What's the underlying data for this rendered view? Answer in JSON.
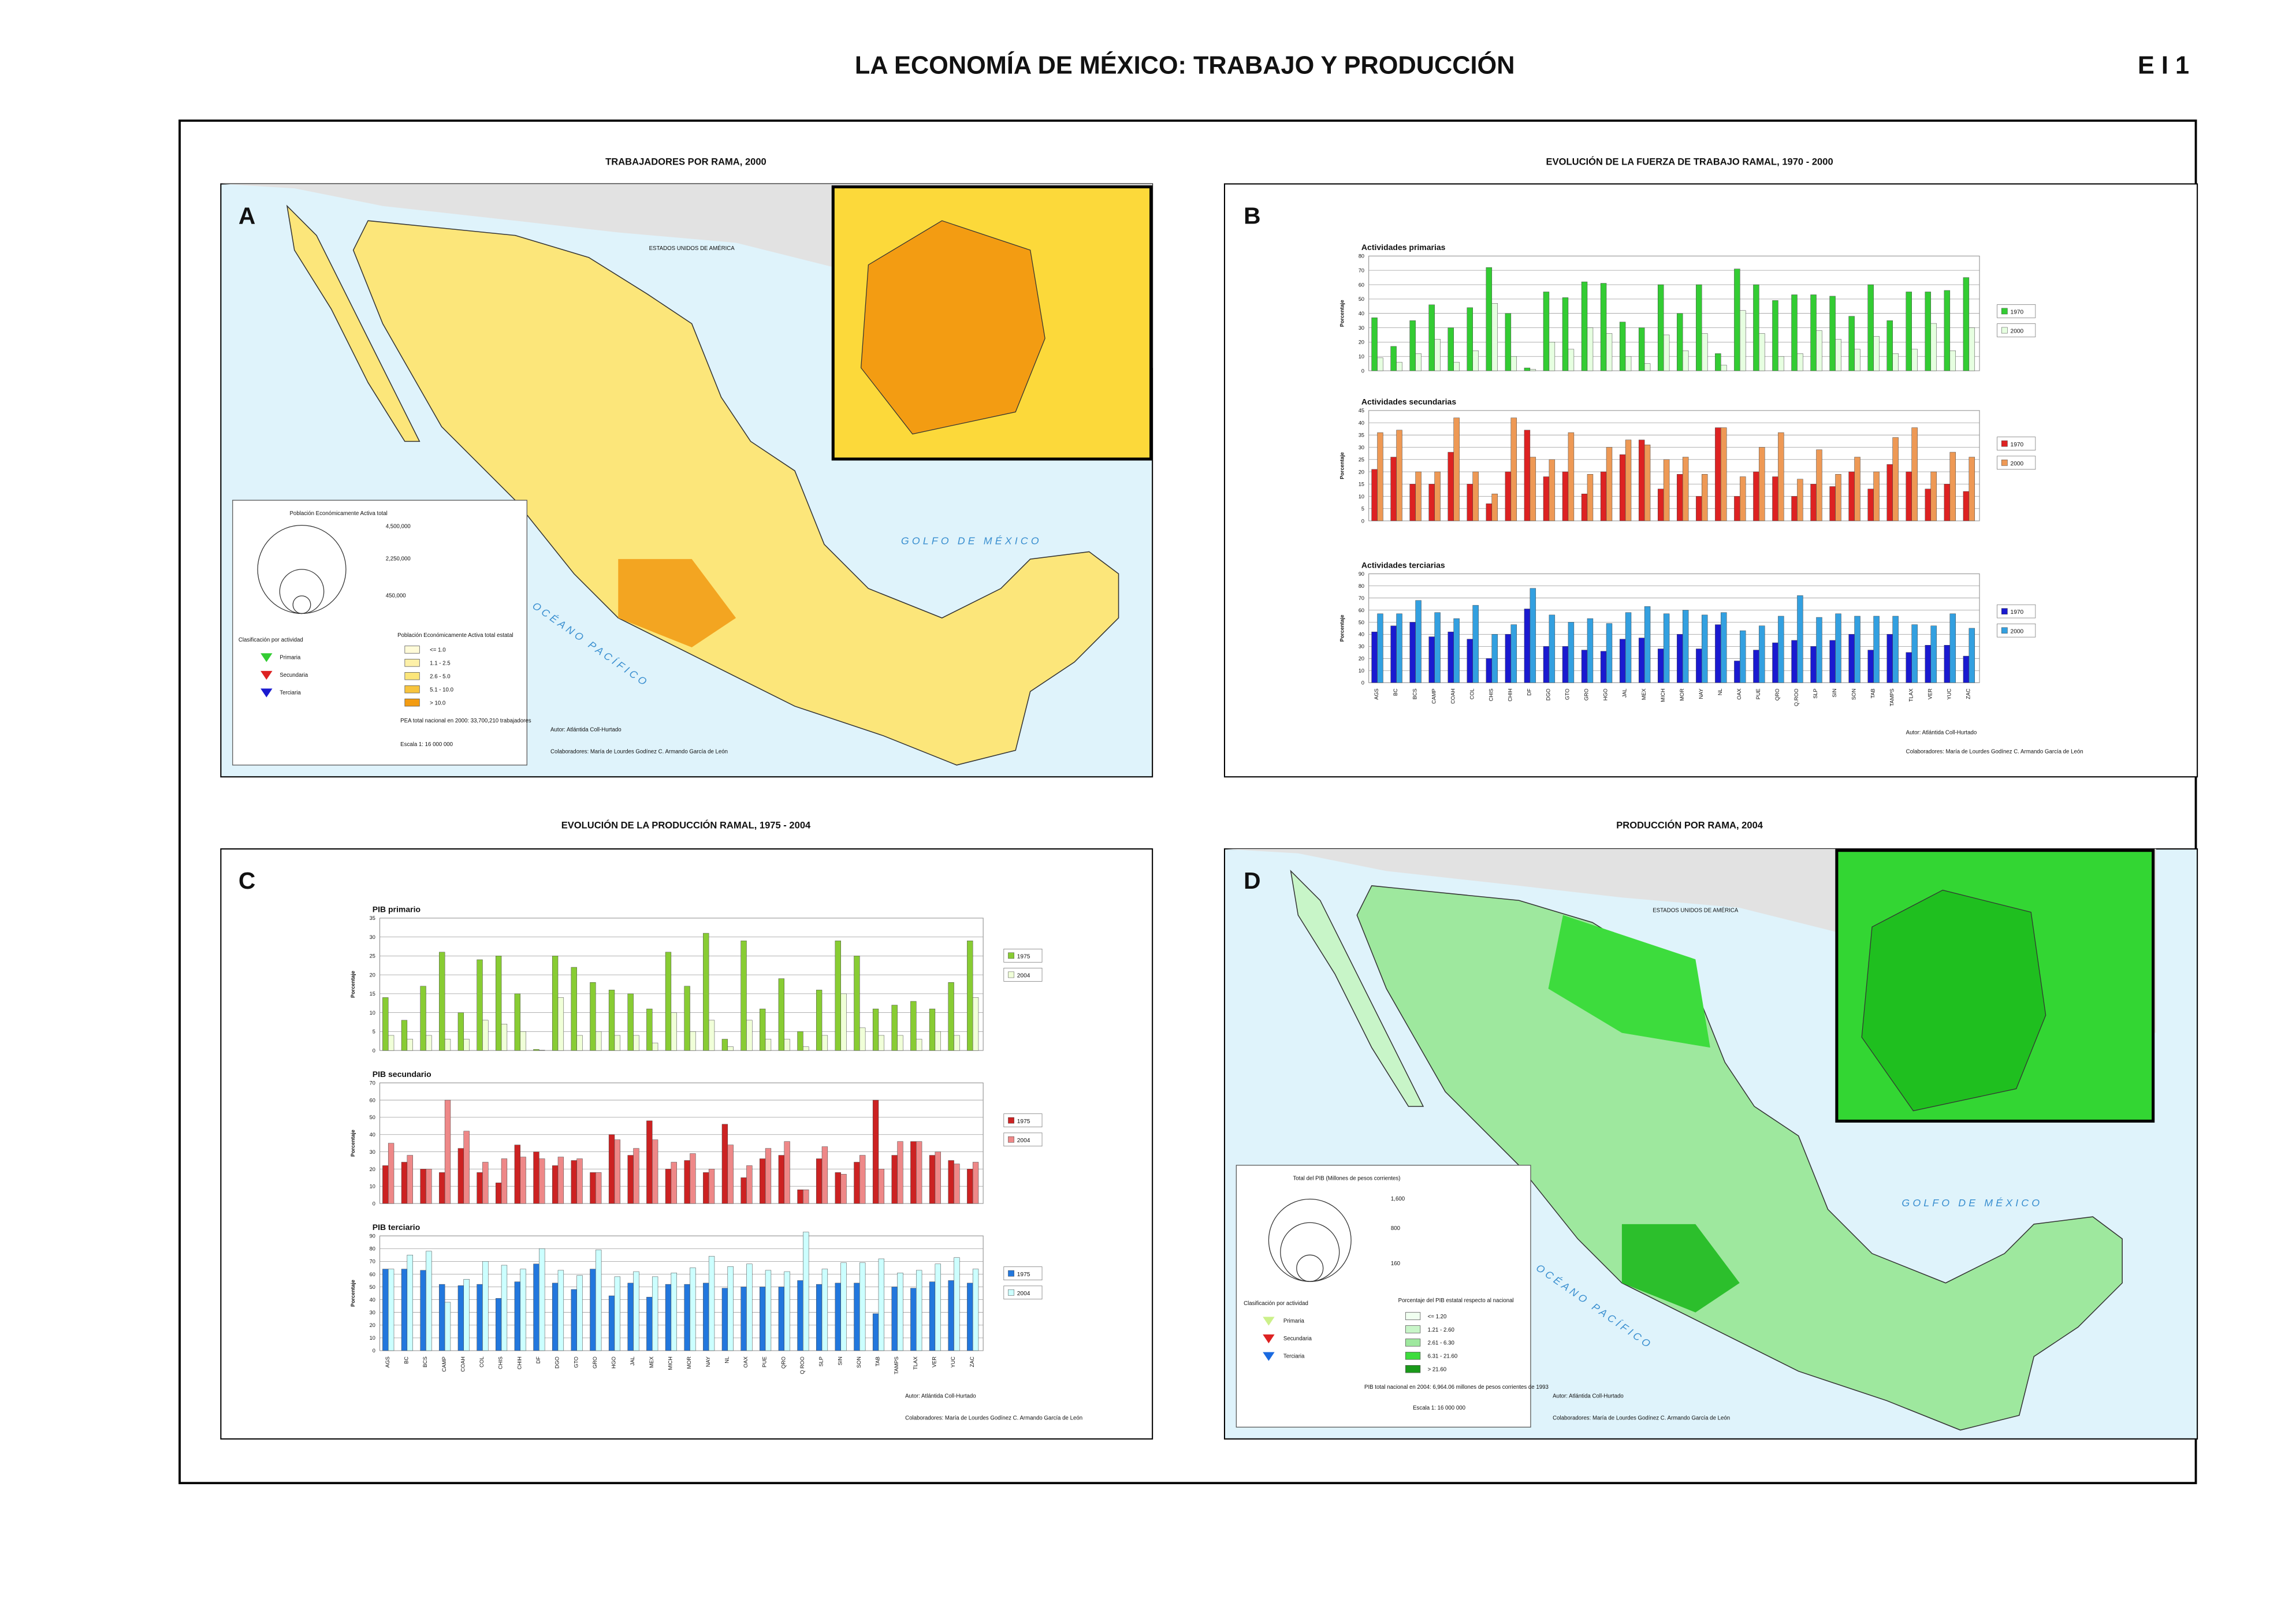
{
  "header": {
    "title": "LA ECONOMÍA DE MÉXICO: TRABAJO Y PRODUCCIÓN",
    "code": "E I 1"
  },
  "panel_a": {
    "letter": "A",
    "title": "TRABAJADORES POR RAMA, 2000",
    "country": "ESTADOS UNIDOS DE AMÉRICA",
    "gulf": "GOLFO DE MÉXICO",
    "ocean": "OCÉANO PACÍFICO",
    "size_legend_title": "Población Económicamente Activa total",
    "size_labels": [
      "4,500,000",
      "2,250,000",
      "450,000"
    ],
    "class_title": "Clasificación por actividad",
    "classes": [
      "Primaria",
      "Secundaria",
      "Terciaria"
    ],
    "choropleth_title": "Población Económicamente Activa total estatal",
    "choropleth_labels": [
      "<= 1.0",
      "1.1 -  2.5",
      "2.6 -  5.0",
      "5.1 - 10.0",
      "> 10.0"
    ],
    "total": "PEA total nacional en 2000: 33,700,210 trabajadores",
    "scale": "Escala  1: 16 000 000",
    "author": "Autor: Atlántida Coll-Hurtado",
    "collaborators": "Colaboradores: María de Lourdes Godínez C. Armando García de León"
  },
  "panel_b": {
    "letter": "B",
    "title": "EVOLUCIÓN DE LA FUERZA DE TRABAJO RAMAL, 1970 - 2000",
    "author": "Autor: Atlántida Coll-Hurtado",
    "collaborators": "Colaboradores: María de Lourdes Godínez C. Armando García de León"
  },
  "panel_c": {
    "letter": "C",
    "title": "EVOLUCIÓN DE LA PRODUCCIÓN RAMAL, 1975 - 2004",
    "author": "Autor: Atlántida Coll-Hurtado",
    "collaborators": "Colaboradores: María de Lourdes Godínez C. Armando García de León"
  },
  "panel_d": {
    "letter": "D",
    "title": "PRODUCCIÓN POR RAMA, 2004",
    "country": "ESTADOS UNIDOS DE AMÉRICA",
    "gulf": "GOLFO DE MÉXICO",
    "ocean": "OCÉANO PACÍFICO",
    "size_legend_title": "Total del PIB (Millones de pesos corrientes)",
    "size_labels": [
      "1,600",
      "800",
      "160"
    ],
    "class_title": "Clasificación por actividad",
    "classes": [
      "Primaria",
      "Secundaria",
      "Terciaria"
    ],
    "choropleth_title": "Porcentaje del PIB estatal respecto al nacional",
    "choropleth_labels": [
      "<= 1.20",
      "1.21 -  2.60",
      "2.61 -  6.30",
      "6.31 - 21.60",
      "> 21.60"
    ],
    "total": "PIB total nacional en 2004: 6,964.06 millones de pesos corrientes de 1993",
    "scale": "Escala  1: 16 000 000",
    "author": "Autor: Atlántida Coll-Hurtado",
    "collaborators": "Colaboradores: María de Lourdes Godínez C. Armando García de León"
  },
  "chart_data": [
    {
      "type": "bar",
      "title": "Actividades primarias",
      "y_label": "Porcentaje",
      "ylim": [
        0,
        80
      ],
      "yticks": [
        0,
        10,
        20,
        30,
        40,
        50,
        60,
        70,
        80
      ],
      "grid": true,
      "series": [
        {
          "name": "1970",
          "color": "#33cc33",
          "values": [
            37,
            17,
            35,
            46,
            30,
            44,
            72,
            40,
            2,
            55,
            51,
            62,
            61,
            34,
            30,
            60,
            40,
            60,
            12,
            71,
            60,
            49,
            53,
            53,
            52,
            38,
            60,
            35,
            55,
            55,
            56,
            65
          ]
        },
        {
          "name": "2000",
          "color": "#e6ffe0",
          "values": [
            9,
            6,
            12,
            22,
            6,
            14,
            47,
            10,
            1,
            20,
            15,
            30,
            26,
            10,
            5,
            25,
            14,
            26,
            4,
            42,
            26,
            10,
            12,
            28,
            22,
            15,
            24,
            12,
            15,
            33,
            14,
            30
          ]
        }
      ]
    },
    {
      "type": "bar",
      "title": "Actividades secundarias",
      "y_label": "Porcentaje",
      "ylim": [
        0,
        45
      ],
      "yticks": [
        0,
        5,
        10,
        15,
        20,
        25,
        30,
        35,
        40,
        45
      ],
      "grid": true,
      "series": [
        {
          "name": "1970",
          "color": "#dd2222",
          "values": [
            21,
            26,
            15,
            15,
            28,
            15,
            7,
            20,
            37,
            18,
            20,
            11,
            20,
            27,
            33,
            13,
            19,
            10,
            38,
            10,
            20,
            18,
            10,
            15,
            14,
            20,
            13,
            23,
            20,
            13,
            15,
            12
          ]
        },
        {
          "name": "2000",
          "color": "#ee9955",
          "values": [
            36,
            37,
            20,
            20,
            42,
            20,
            11,
            42,
            26,
            25,
            36,
            19,
            30,
            33,
            31,
            25,
            26,
            19,
            38,
            18,
            30,
            36,
            17,
            29,
            19,
            26,
            20,
            34,
            38,
            20,
            28,
            26
          ]
        }
      ]
    },
    {
      "type": "bar",
      "title": "Actividades terciarias",
      "y_label": "Porcentaje",
      "ylim": [
        0,
        90
      ],
      "yticks": [
        0,
        10,
        20,
        30,
        40,
        50,
        60,
        70,
        80,
        90
      ],
      "grid": true,
      "categories": [
        "AGS",
        "BC",
        "BCS",
        "CAMP",
        "COAH",
        "COL",
        "CHIS",
        "CHIH",
        "DF",
        "DGO",
        "GTO",
        "GRO",
        "HGO",
        "JAL",
        "MEX",
        "MICH",
        "MOR",
        "NAY",
        "NL",
        "OAX",
        "PUE",
        "QRO",
        "Q.ROO",
        "SLP",
        "SIN",
        "SON",
        "TAB",
        "TAMPS",
        "TLAX",
        "VER",
        "YUC",
        "ZAC"
      ],
      "series": [
        {
          "name": "1970",
          "color": "#1a1ad0",
          "values": [
            42,
            47,
            50,
            38,
            42,
            36,
            20,
            40,
            61,
            30,
            30,
            27,
            26,
            36,
            37,
            28,
            40,
            28,
            48,
            18,
            27,
            33,
            35,
            30,
            35,
            40,
            27,
            40,
            25,
            31,
            31,
            22
          ]
        },
        {
          "name": "2000",
          "color": "#33a0e0",
          "values": [
            57,
            57,
            68,
            58,
            53,
            64,
            40,
            48,
            78,
            56,
            50,
            53,
            49,
            58,
            63,
            57,
            60,
            56,
            58,
            43,
            47,
            55,
            72,
            54,
            57,
            55,
            55,
            55,
            48,
            47,
            57,
            45
          ]
        }
      ]
    },
    {
      "type": "bar",
      "title": "PIB primario",
      "y_label": "Porcentaje",
      "ylim": [
        0,
        35
      ],
      "yticks": [
        0,
        5,
        10,
        15,
        20,
        25,
        30,
        35
      ],
      "grid": true,
      "series": [
        {
          "name": "1975",
          "color": "#88cc33",
          "values": [
            14,
            8,
            17,
            26,
            10,
            24,
            25,
            15,
            0.3,
            25,
            22,
            18,
            16,
            15,
            11,
            26,
            17,
            31,
            3,
            29,
            11,
            19,
            5,
            16,
            29,
            25,
            11,
            12,
            13,
            11,
            18,
            29
          ]
        },
        {
          "name": "2004",
          "color": "#f0ffd8",
          "values": [
            4,
            3,
            4,
            3,
            3,
            8,
            7,
            5,
            0.1,
            14,
            4,
            5,
            4,
            4,
            2,
            10,
            5,
            8,
            1,
            8,
            3,
            3,
            1,
            4,
            15,
            6,
            4,
            4,
            3,
            5,
            4,
            14
          ]
        }
      ]
    },
    {
      "type": "bar",
      "title": "PIB secundario",
      "y_label": "Porcentaje",
      "ylim": [
        0,
        70
      ],
      "yticks": [
        0,
        10,
        20,
        30,
        40,
        50,
        60,
        70
      ],
      "grid": true,
      "series": [
        {
          "name": "1975",
          "color": "#cc2222",
          "values": [
            22,
            24,
            20,
            18,
            32,
            18,
            12,
            34,
            30,
            22,
            25,
            18,
            40,
            28,
            48,
            20,
            25,
            18,
            46,
            15,
            26,
            28,
            8,
            26,
            18,
            24,
            60,
            28,
            36,
            28,
            25,
            20
          ]
        },
        {
          "name": "2004",
          "color": "#ee8888",
          "values": [
            35,
            28,
            20,
            60,
            42,
            24,
            26,
            27,
            26,
            27,
            26,
            18,
            37,
            32,
            37,
            24,
            29,
            20,
            34,
            22,
            32,
            36,
            8,
            33,
            17,
            28,
            20,
            36,
            36,
            30,
            23,
            24
          ]
        }
      ]
    },
    {
      "type": "bar",
      "title": "PIB terciario",
      "y_label": "Porcentaje",
      "ylim": [
        0,
        90
      ],
      "yticks": [
        0,
        10,
        20,
        30,
        40,
        50,
        60,
        70,
        80,
        90
      ],
      "grid": true,
      "categories": [
        "AGS",
        "BC",
        "BCS",
        "CAMP",
        "COAH",
        "COL",
        "CHIS",
        "CHIH",
        "DF",
        "DGO",
        "GTO",
        "GRO",
        "HGO",
        "JAL",
        "MEX",
        "MICH",
        "MOR",
        "NAY",
        "NL",
        "OAX",
        "PUE",
        "QRO",
        "Q ROO",
        "SLP",
        "SIN",
        "SON",
        "TAB",
        "TAMPS",
        "TLAX",
        "VER",
        "YUC",
        "ZAC"
      ],
      "series": [
        {
          "name": "1975",
          "color": "#2277dd",
          "values": [
            64,
            64,
            63,
            52,
            51,
            52,
            41,
            54,
            68,
            53,
            48,
            64,
            43,
            53,
            42,
            52,
            52,
            53,
            49,
            50,
            50,
            50,
            55,
            52,
            53,
            53,
            29,
            50,
            49,
            54,
            55,
            53
          ]
        },
        {
          "name": "2004",
          "color": "#ccffff",
          "values": [
            64,
            75,
            78,
            38,
            56,
            70,
            67,
            64,
            80,
            63,
            59,
            79,
            58,
            62,
            58,
            61,
            65,
            74,
            66,
            68,
            63,
            62,
            93,
            64,
            69,
            69,
            72,
            61,
            63,
            68,
            73,
            64
          ]
        }
      ]
    }
  ]
}
